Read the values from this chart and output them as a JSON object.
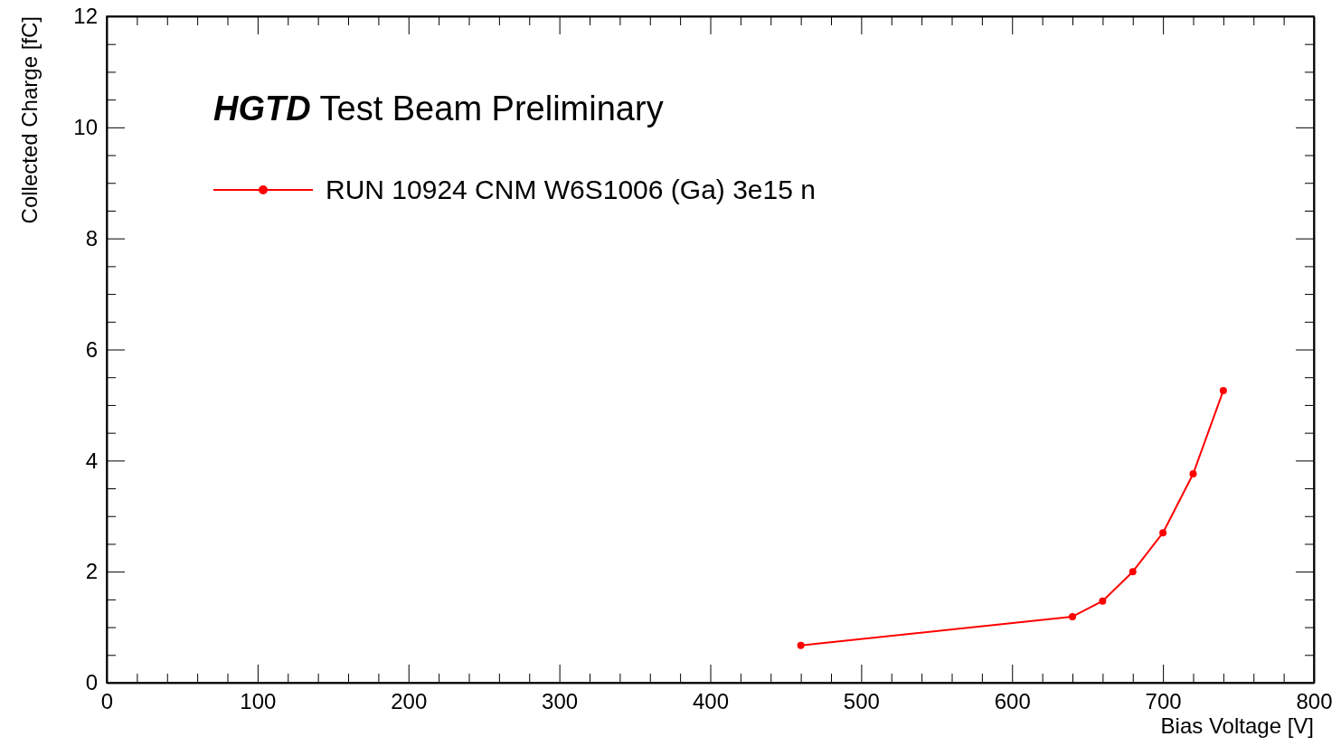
{
  "chart_data": {
    "type": "line",
    "title": "HGTD Test Beam Preliminary",
    "xlabel": "Bias Voltage [V]",
    "ylabel": "Collected Charge [fC]",
    "x": [
      460,
      640,
      660,
      680,
      700,
      720,
      740
    ],
    "series": [
      {
        "name": "RUN 10924 CNM W6S1006 (Ga) 3e15 n",
        "color": "#ff0000",
        "values": [
          0.67,
          1.19,
          1.47,
          2.0,
          2.7,
          3.76,
          5.26
        ]
      }
    ],
    "xlim": [
      0,
      800
    ],
    "ylim": [
      0,
      12
    ],
    "xticks": [
      0,
      {
        "value": 20,
        "label": null
      },
      {
        "value": 40,
        "label": null
      },
      {
        "value": 60,
        "label": null
      },
      {
        "value": 80,
        "label": null
      },
      100,
      {
        "value": 120,
        "label": null
      },
      {
        "value": 140,
        "label": null
      },
      {
        "value": 160,
        "label": null
      },
      {
        "value": 180,
        "label": null
      },
      200,
      {
        "value": 220,
        "label": null
      },
      {
        "value": 240,
        "label": null
      },
      {
        "value": 260,
        "label": null
      },
      {
        "value": 280,
        "label": null
      },
      300,
      {
        "value": 320,
        "label": null
      },
      {
        "value": 340,
        "label": null
      },
      {
        "value": 360,
        "label": null
      },
      {
        "value": 380,
        "label": null
      },
      400,
      {
        "value": 420,
        "label": null
      },
      {
        "value": 440,
        "label": null
      },
      {
        "value": 460,
        "label": null
      },
      {
        "value": 480,
        "label": null
      },
      500,
      {
        "value": 520,
        "label": null
      },
      {
        "value": 540,
        "label": null
      },
      {
        "value": 560,
        "label": null
      },
      {
        "value": 580,
        "label": null
      },
      600,
      {
        "value": 620,
        "label": null
      },
      {
        "value": 640,
        "label": null
      },
      {
        "value": 660,
        "label": null
      },
      {
        "value": 680,
        "label": null
      },
      700,
      {
        "value": 720,
        "label": null
      },
      {
        "value": 740,
        "label": null
      },
      {
        "value": 760,
        "label": null
      },
      {
        "value": 780,
        "label": null
      },
      800
    ],
    "yticks": [
      0,
      {
        "value": 0.5,
        "label": null
      },
      {
        "value": 1,
        "label": null
      },
      {
        "value": 1.5,
        "label": null
      },
      2,
      {
        "value": 2.5,
        "label": null
      },
      {
        "value": 3,
        "label": null
      },
      {
        "value": 3.5,
        "label": null
      },
      4,
      {
        "value": 4.5,
        "label": null
      },
      {
        "value": 5,
        "label": null
      },
      {
        "value": 5.5,
        "label": null
      },
      6,
      {
        "value": 6.5,
        "label": null
      },
      {
        "value": 7,
        "label": null
      },
      {
        "value": 7.5,
        "label": null
      },
      8,
      {
        "value": 8.5,
        "label": null
      },
      {
        "value": 9,
        "label": null
      },
      {
        "value": 9.5,
        "label": null
      },
      10,
      {
        "value": 10.5,
        "label": null
      },
      {
        "value": 11,
        "label": null
      },
      {
        "value": 11.5,
        "label": null
      },
      12
    ],
    "legend": "top left",
    "marker": "circle",
    "line_style": "solid",
    "grid": false
  }
}
